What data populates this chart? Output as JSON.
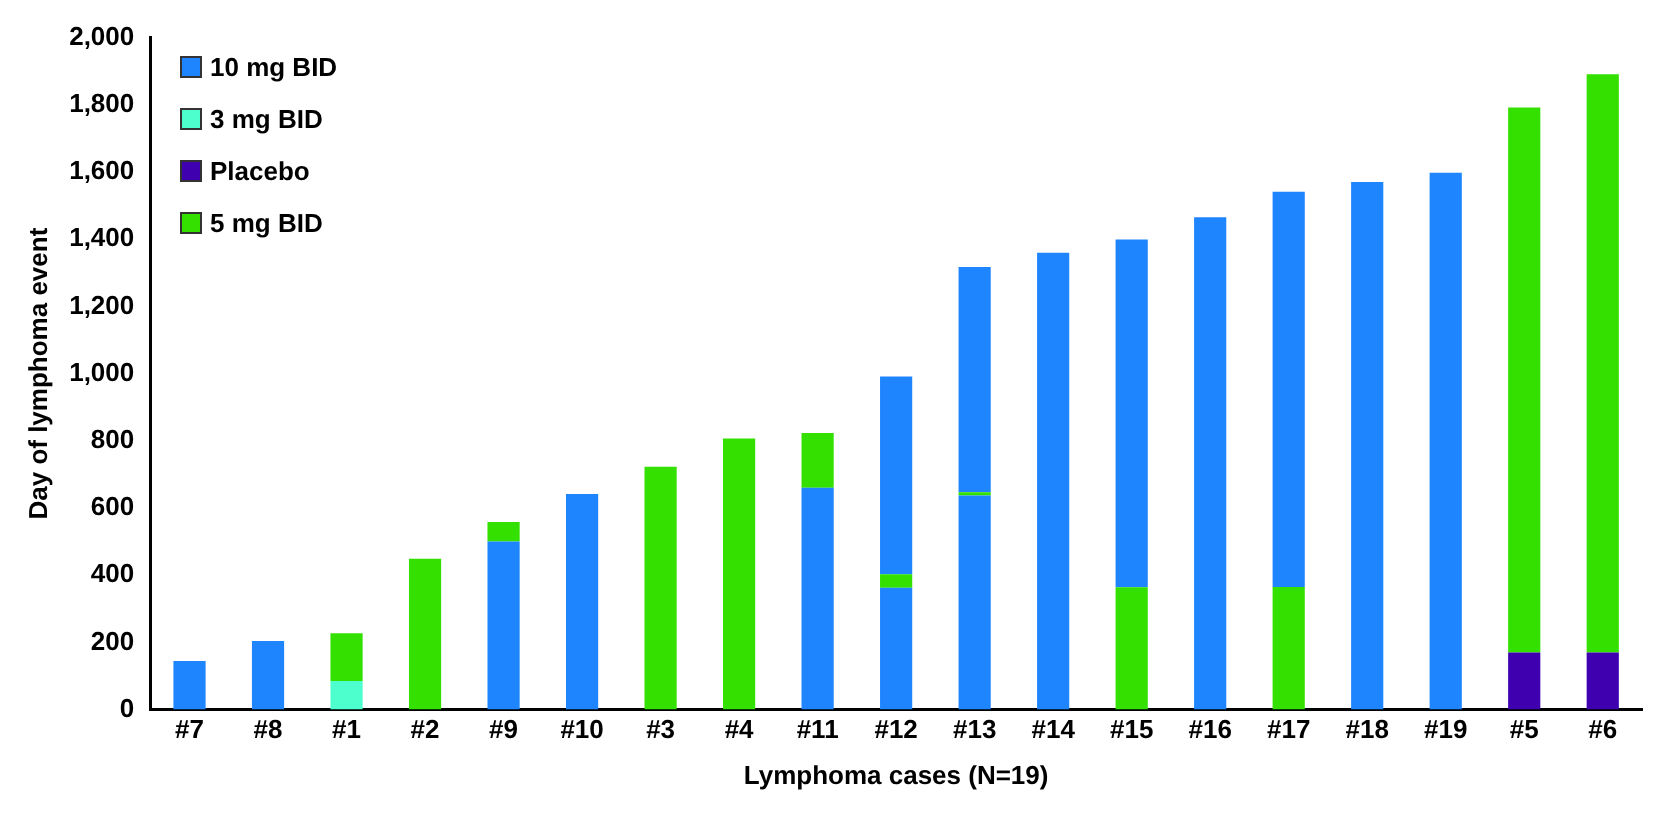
{
  "chart_data": {
    "type": "bar",
    "stacked": true,
    "xlabel": "Lymphoma cases (N=19)",
    "ylabel": "Day of lymphoma event",
    "categories": [
      "#7",
      "#8",
      "#1",
      "#2",
      "#9",
      "#10",
      "#3",
      "#4",
      "#11",
      "#12",
      "#13",
      "#14",
      "#15",
      "#16",
      "#17",
      "#18",
      "#19",
      "#5",
      "#6"
    ],
    "series": [
      {
        "name": "10 mg BID",
        "color": "#1f85ff",
        "values": [
          145,
          204,
          null,
          null,
          500,
          642,
          null,
          null,
          660,
          363,
          637,
          1360,
          null,
          1465,
          null,
          1570,
          1598,
          null,
          null
        ]
      },
      {
        "name": "3 mg BID",
        "color": "#4dffcc",
        "values": [
          null,
          null,
          85,
          null,
          null,
          null,
          null,
          null,
          null,
          null,
          null,
          null,
          null,
          null,
          null,
          null,
          null,
          null,
          null
        ]
      },
      {
        "name": "Placebo",
        "color": "#3f00b0",
        "values": [
          null,
          null,
          null,
          null,
          null,
          null,
          null,
          null,
          null,
          null,
          null,
          null,
          null,
          null,
          null,
          null,
          null,
          170,
          170
        ]
      },
      {
        "name": "5 mg BID",
        "color": "#33e000",
        "values": [
          null,
          null,
          142,
          449,
          58,
          null,
          723,
          807,
          163,
          40,
          10,
          null,
          364,
          null,
          365,
          null,
          null,
          1622,
          1721
        ]
      },
      {
        "color": "#1f85ff",
        "values": [
          null,
          null,
          null,
          null,
          null,
          null,
          null,
          null,
          null,
          588,
          670,
          null,
          1035,
          null,
          1176,
          null,
          null,
          null,
          null
        ]
      }
    ],
    "ylim": [
      0,
      2000
    ],
    "yticks": [
      0,
      200,
      400,
      600,
      800,
      {
        "value": 1000,
        "label": "1,000"
      },
      {
        "value": 1200,
        "label": "1,200"
      },
      {
        "value": 1400,
        "label": "1,400"
      },
      {
        "value": 1600,
        "label": "1,600"
      },
      {
        "value": 1800,
        "label": "1,800"
      },
      {
        "value": 2000,
        "label": "2,000"
      }
    ],
    "grid": false,
    "legend": "top left"
  }
}
